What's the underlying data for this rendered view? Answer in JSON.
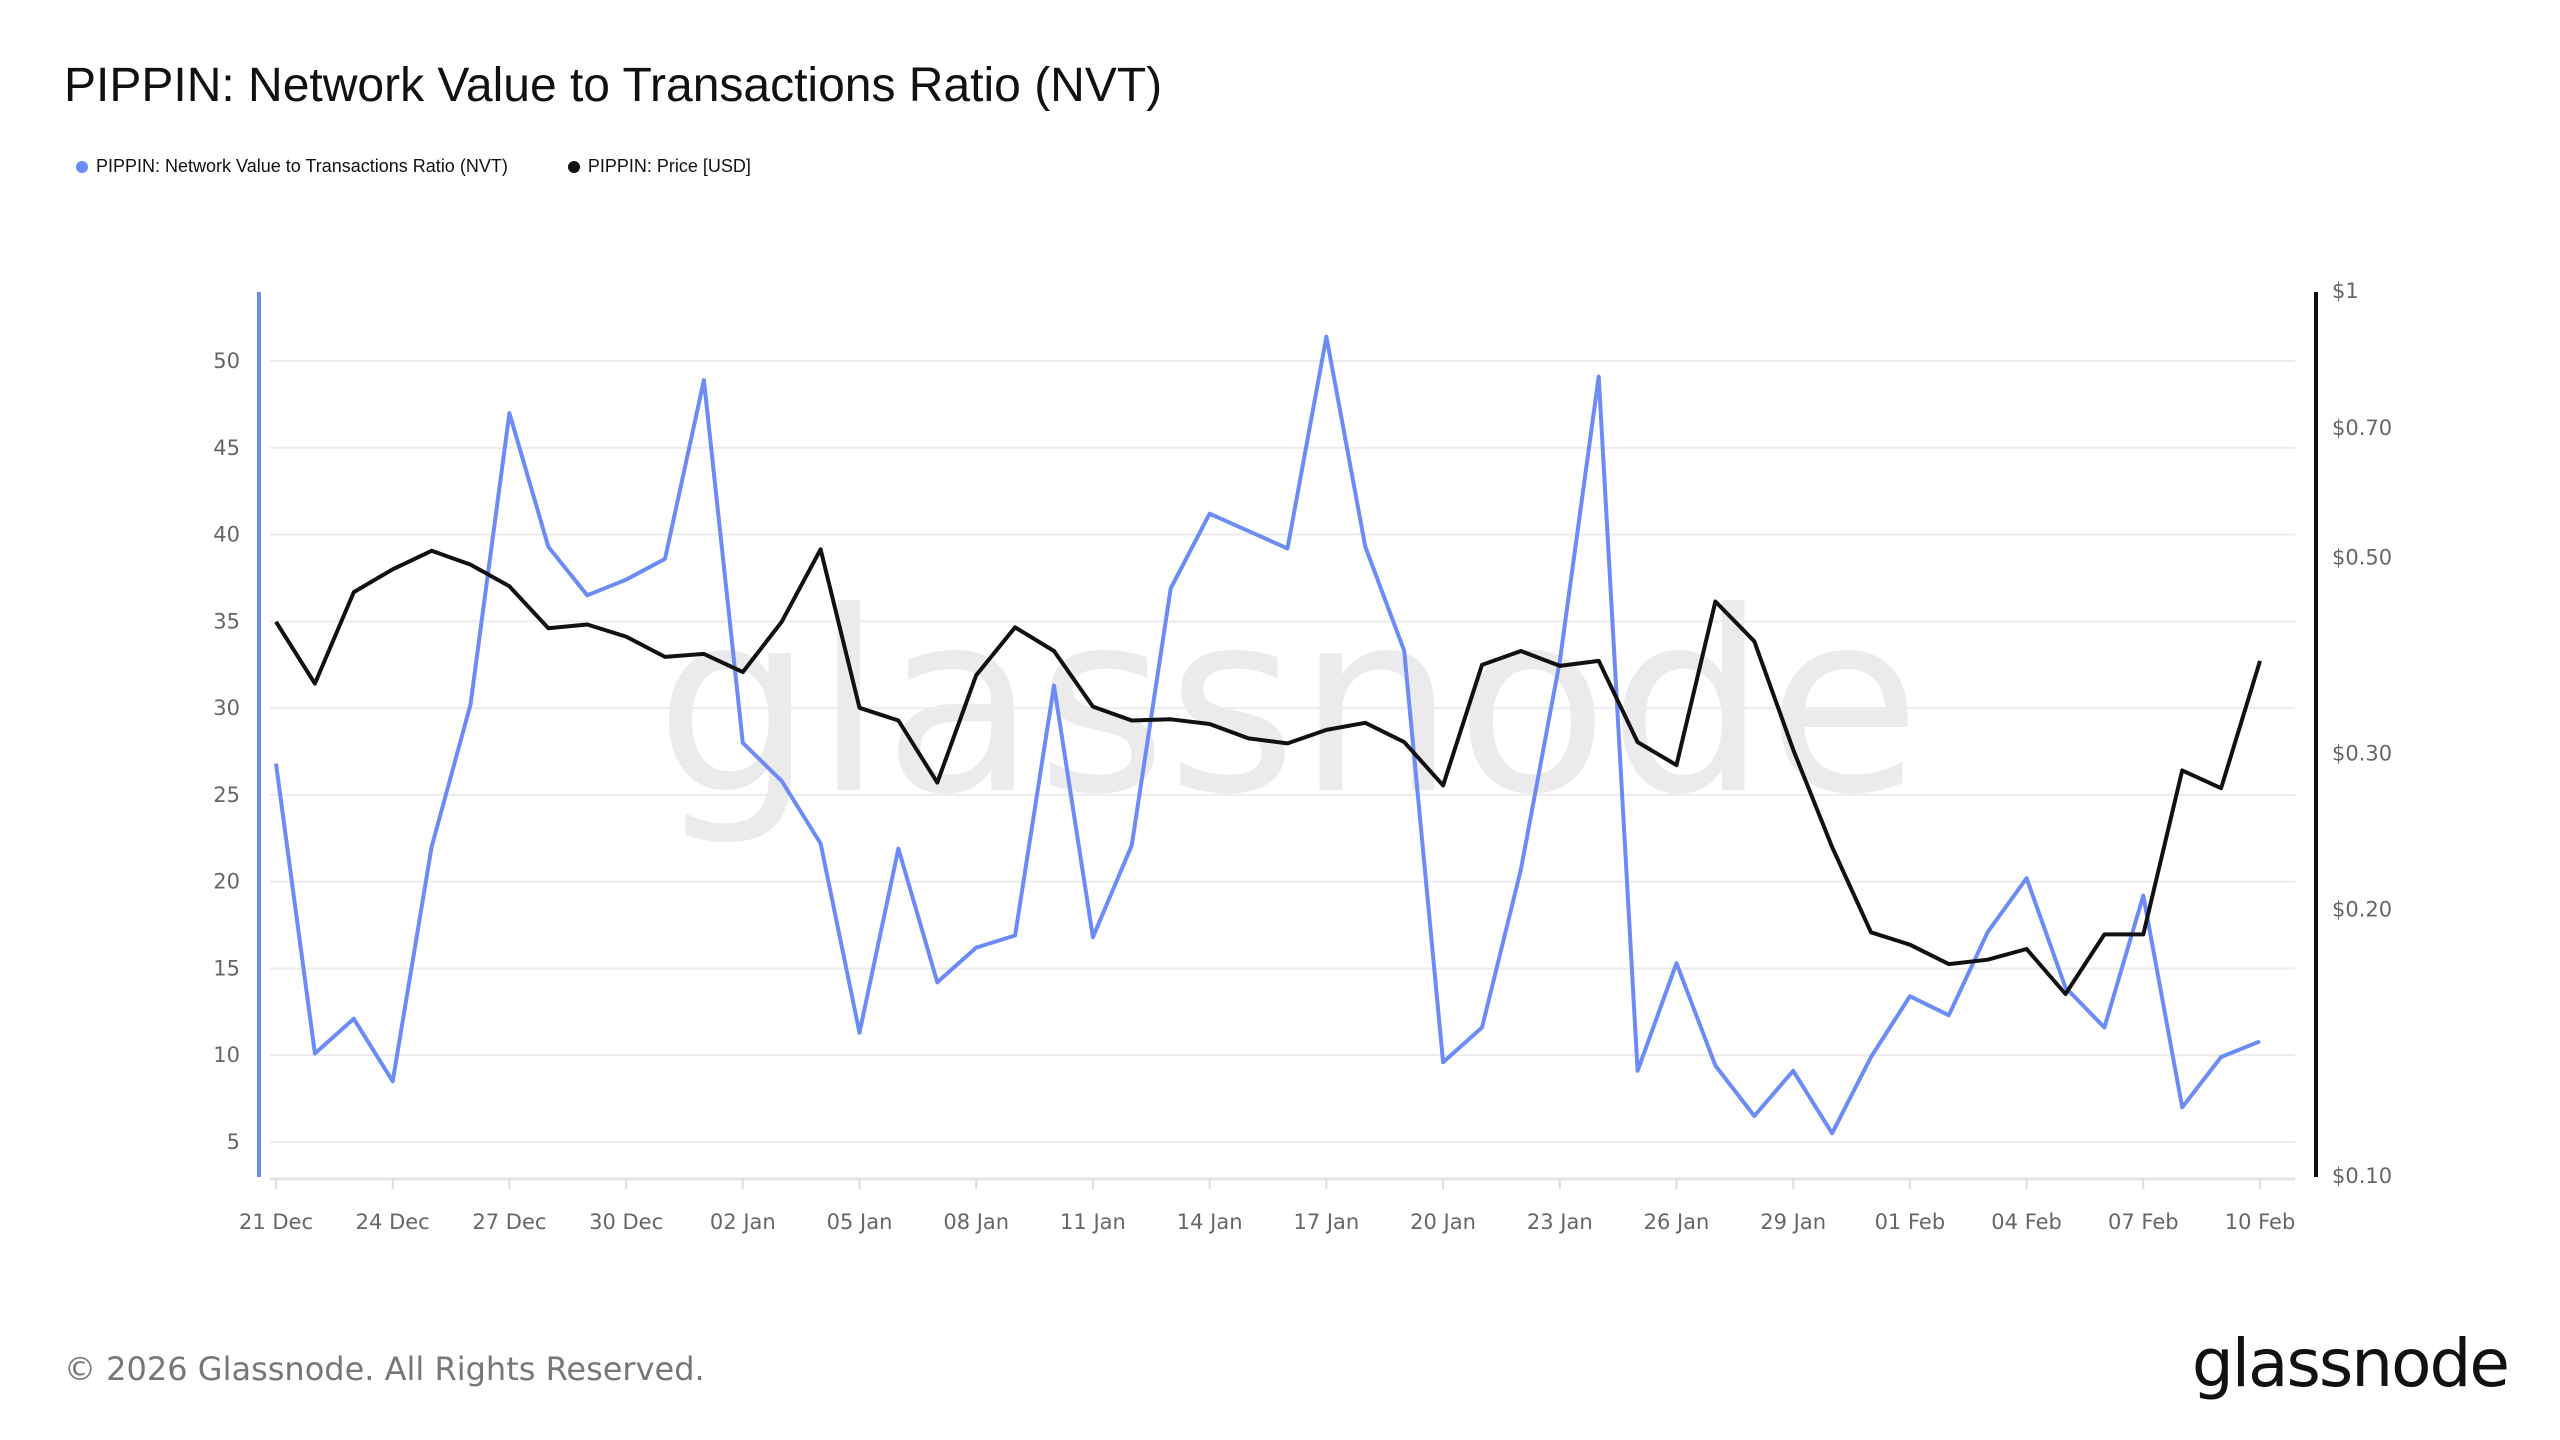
{
  "chart_data": {
    "type": "line",
    "title": "PIPPIN: Network Value to Transactions Ratio (NVT)",
    "legend_position": "top-left",
    "grid": true,
    "x": [
      "21 Dec",
      "22 Dec",
      "23 Dec",
      "24 Dec",
      "25 Dec",
      "26 Dec",
      "27 Dec",
      "28 Dec",
      "29 Dec",
      "30 Dec",
      "31 Dec",
      "01 Jan",
      "02 Jan",
      "03 Jan",
      "04 Jan",
      "05 Jan",
      "06 Jan",
      "07 Jan",
      "08 Jan",
      "09 Jan",
      "10 Jan",
      "11 Jan",
      "12 Jan",
      "13 Jan",
      "14 Jan",
      "15 Jan",
      "16 Jan",
      "17 Jan",
      "18 Jan",
      "19 Jan",
      "20 Jan",
      "21 Jan",
      "22 Jan",
      "23 Jan",
      "24 Jan",
      "25 Jan",
      "26 Jan",
      "27 Jan",
      "28 Jan",
      "29 Jan",
      "30 Jan",
      "31 Jan",
      "01 Feb",
      "02 Feb",
      "03 Feb",
      "04 Feb",
      "05 Feb",
      "06 Feb",
      "07 Feb",
      "08 Feb",
      "09 Feb",
      "10 Feb"
    ],
    "x_tick_labels": [
      "21 Dec",
      "24 Dec",
      "27 Dec",
      "30 Dec",
      "02 Jan",
      "05 Jan",
      "08 Jan",
      "11 Jan",
      "14 Jan",
      "17 Jan",
      "20 Jan",
      "23 Jan",
      "26 Jan",
      "29 Jan",
      "01 Feb",
      "04 Feb",
      "07 Feb",
      "10 Feb"
    ],
    "y_left": {
      "ticks": [
        5,
        10,
        15,
        20,
        25,
        30,
        35,
        40,
        45,
        50
      ],
      "ylim": [
        3,
        54.5
      ],
      "scale": "linear"
    },
    "y_right": {
      "tick_values": [
        0.1,
        0.2,
        0.3,
        0.5,
        0.7,
        1
      ],
      "tick_labels": [
        "$0.10",
        "$0.20",
        "$0.30",
        "$0.50",
        "$0.70",
        "$1"
      ],
      "ylim": [
        0.1,
        1
      ],
      "scale": "log"
    },
    "series": [
      {
        "name": "PIPPIN: Network Value to Transactions Ratio (NVT)",
        "axis": "left",
        "color": "#6b8cf6",
        "values": [
          26.8,
          10.1,
          12.1,
          8.5,
          22.0,
          30.2,
          47.0,
          39.3,
          36.5,
          37.4,
          38.6,
          48.9,
          28.0,
          25.8,
          22.2,
          11.3,
          21.9,
          14.2,
          16.2,
          16.9,
          31.3,
          16.8,
          22.1,
          36.9,
          41.2,
          40.2,
          39.2,
          51.4,
          39.3,
          33.3,
          9.6,
          11.6,
          20.7,
          32.7,
          49.1,
          9.1,
          15.3,
          9.4,
          6.5,
          9.1,
          5.5,
          9.9,
          13.4,
          12.3,
          17.1,
          20.2,
          13.9,
          11.6,
          19.2,
          7.0,
          9.9,
          10.8
        ]
      },
      {
        "name": "PIPPIN: Price [USD]",
        "axis": "right",
        "color": "#111111",
        "values": [
          0.424,
          0.361,
          0.458,
          0.486,
          0.51,
          0.492,
          0.465,
          0.417,
          0.421,
          0.408,
          0.387,
          0.39,
          0.372,
          0.424,
          0.512,
          0.339,
          0.328,
          0.279,
          0.369,
          0.418,
          0.393,
          0.34,
          0.328,
          0.329,
          0.325,
          0.313,
          0.309,
          0.32,
          0.326,
          0.31,
          0.277,
          0.379,
          0.393,
          0.378,
          0.383,
          0.31,
          0.292,
          0.447,
          0.403,
          0.304,
          0.236,
          0.189,
          0.183,
          0.174,
          0.176,
          0.181,
          0.161,
          0.188,
          0.188,
          0.288,
          0.275,
          0.383
        ]
      }
    ]
  },
  "watermark": "glassnode",
  "footer": {
    "copyright": "© 2026 Glassnode. All Rights Reserved.",
    "logo": "glassnode"
  }
}
